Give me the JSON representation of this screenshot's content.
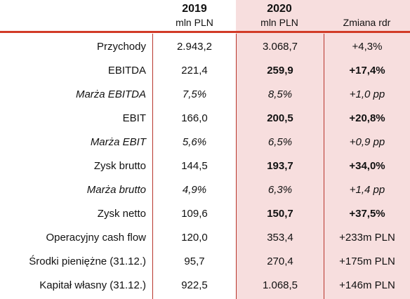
{
  "header": {
    "year_2019": "2019",
    "unit_2019": "mln PLN",
    "year_2020": "2020",
    "unit_2020": "mln PLN",
    "change": "Zmiana rdr"
  },
  "colors": {
    "accent_line": "#d23b27",
    "column_2020_bg": "#f7dede"
  },
  "rows": [
    {
      "label": "Przychody",
      "v2019": "2.943,2",
      "v2020": "3.068,7",
      "change": "+4,3%"
    },
    {
      "label": "EBITDA",
      "v2019": "221,4",
      "v2020": "259,9",
      "change": "+17,4%"
    },
    {
      "label": "Marża EBITDA",
      "v2019": "7,5%",
      "v2020": "8,5%",
      "change": "+1,0 pp"
    },
    {
      "label": "EBIT",
      "v2019": "166,0",
      "v2020": "200,5",
      "change": "+20,8%"
    },
    {
      "label": "Marża EBIT",
      "v2019": "5,6%",
      "v2020": "6,5%",
      "change": "+0,9 pp"
    },
    {
      "label": "Zysk brutto",
      "v2019": "144,5",
      "v2020": "193,7",
      "change": "+34,0%"
    },
    {
      "label": "Marża brutto",
      "v2019": "4,9%",
      "v2020": "6,3%",
      "change": "+1,4 pp"
    },
    {
      "label": "Zysk netto",
      "v2019": "109,6",
      "v2020": "150,7",
      "change": "+37,5%"
    },
    {
      "label": "Operacyjny cash flow",
      "v2019": "120,0",
      "v2020": "353,4",
      "change": "+233m PLN"
    },
    {
      "label": "Środki pieniężne (31.12.)",
      "v2019": "95,7",
      "v2020": "270,4",
      "change": "+175m PLN"
    },
    {
      "label": "Kapitał własny (31.12.)",
      "v2019": "922,5",
      "v2020": "1.068,5",
      "change": "+146m PLN"
    }
  ]
}
